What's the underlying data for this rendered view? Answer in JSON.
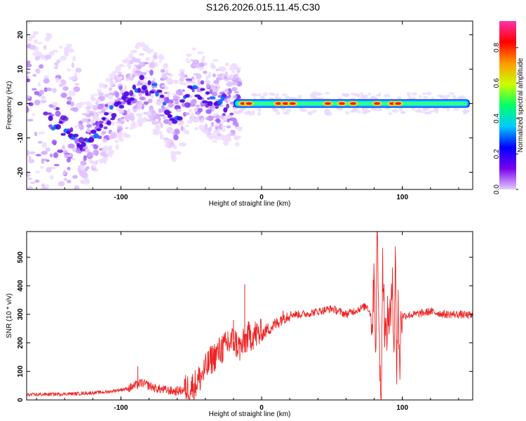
{
  "title": "S126.2026.015.11.45.C30",
  "chart_data": [
    {
      "type": "heatmap",
      "xlabel": "Height of straight line (km)",
      "ylabel": "Frequency (Hz)",
      "xlim": [
        -167,
        150
      ],
      "ylim": [
        -25,
        24
      ],
      "xticks": [
        -100,
        0,
        100
      ],
      "yticks": [
        -20,
        -10,
        0,
        10,
        20
      ],
      "colorbar": {
        "label": "Normalized spectral amplitude",
        "ticks": [
          0.0,
          0.2,
          0.4,
          0.6,
          0.8
        ],
        "range": [
          0,
          0.95
        ],
        "colormap": [
          "#e6ccff",
          "#7700ee",
          "#0000ff",
          "#00ccff",
          "#00ff66",
          "#ccff00",
          "#ff9900",
          "#ff0000",
          "#ff33aa"
        ]
      },
      "band": {
        "x_start": -20,
        "x_end": 148,
        "freq_center": 0,
        "peak_x": [
          -13,
          -9,
          12,
          17,
          22,
          47,
          57,
          65,
          82,
          93,
          97
        ]
      },
      "scatter_region": {
        "x_start": -167,
        "x_end": -25,
        "ridge": [
          [
            -165,
            -5
          ],
          [
            -150,
            -5
          ],
          [
            -125,
            -12
          ],
          [
            -105,
            -2
          ],
          [
            -85,
            6
          ],
          [
            -70,
            2
          ],
          [
            -62,
            -6
          ],
          [
            -50,
            5
          ],
          [
            -40,
            2
          ],
          [
            -30,
            0
          ]
        ]
      }
    },
    {
      "type": "line",
      "xlabel": "Height of straight line (km)",
      "ylabel": "SNR (10 * v/v)",
      "xlim": [
        -167,
        150
      ],
      "ylim": [
        0,
        590
      ],
      "xticks": [
        -100,
        0,
        100
      ],
      "yticks": [
        0,
        100,
        200,
        300,
        400,
        500
      ],
      "series": [
        {
          "color": "#ee2222",
          "x": [
            -167,
            -150,
            -130,
            -110,
            -95,
            -85,
            -75,
            -62,
            -55,
            -48,
            -42,
            -36,
            -30,
            -25,
            -20,
            -15,
            -10,
            -5,
            0,
            5,
            10,
            15,
            20,
            30,
            40,
            50,
            60,
            65,
            70,
            75,
            79,
            80,
            81,
            82,
            83,
            84,
            85,
            86,
            88,
            90,
            92,
            93,
            94,
            95,
            96,
            97,
            98,
            99,
            100,
            110,
            120,
            130,
            140,
            150
          ],
          "y": [
            18,
            20,
            22,
            28,
            40,
            60,
            40,
            30,
            35,
            50,
            90,
            140,
            170,
            190,
            210,
            180,
            220,
            230,
            230,
            250,
            265,
            290,
            300,
            300,
            310,
            320,
            300,
            310,
            320,
            330,
            280,
            500,
            150,
            590,
            400,
            90,
            30,
            480,
            200,
            300,
            280,
            460,
            170,
            500,
            120,
            350,
            80,
            300,
            295,
            300,
            310,
            300,
            300,
            295
          ]
        }
      ],
      "spikes": [
        {
          "x": -88,
          "y": 118
        },
        {
          "x": -12,
          "y": 405
        },
        {
          "x": -20,
          "y": 280
        },
        {
          "x": -24,
          "y": 240
        },
        {
          "x": -28,
          "y": 225
        }
      ]
    }
  ]
}
